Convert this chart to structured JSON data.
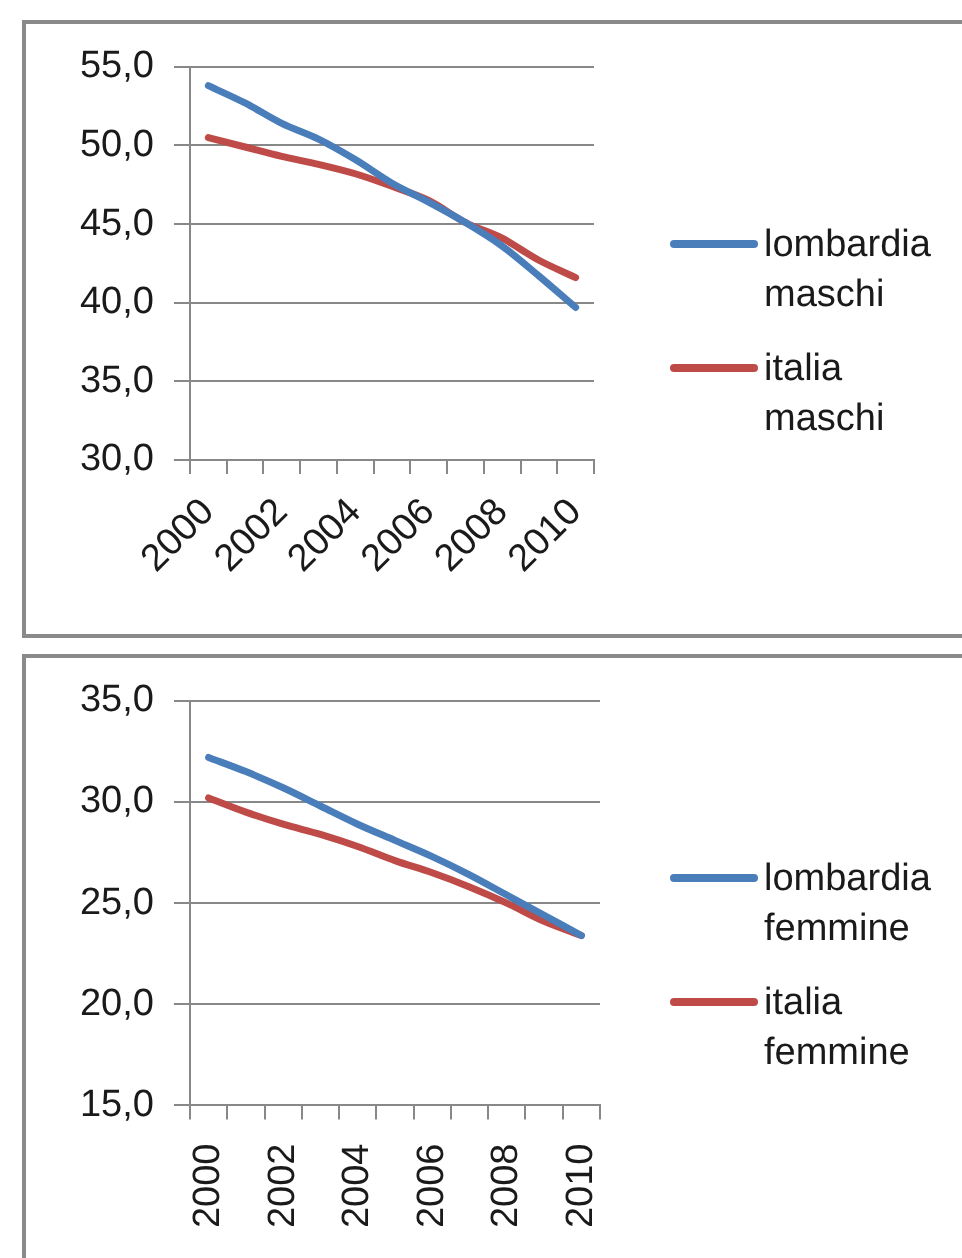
{
  "chart_data": [
    {
      "type": "line",
      "categories": [
        "2000",
        null,
        "2002",
        null,
        "2004",
        null,
        "2006",
        null,
        "2008",
        null,
        "2010"
      ],
      "series": [
        {
          "name": "lombardia maschi",
          "color": "#4a7ebb",
          "values": [
            53.8,
            52.7,
            51.4,
            50.4,
            49.1,
            47.6,
            46.4,
            45.1,
            43.6,
            41.7,
            39.7
          ]
        },
        {
          "name": "italia maschi",
          "color": "#be4b48",
          "values": [
            50.5,
            49.9,
            49.3,
            48.8,
            48.2,
            47.4,
            46.5,
            45.1,
            44.1,
            42.7,
            41.6
          ]
        }
      ],
      "ylim": [
        30,
        55
      ],
      "yticks": [
        {
          "value": 30,
          "label": "30,0"
        },
        {
          "value": 35,
          "label": "35,0"
        },
        {
          "value": 40,
          "label": "40,0"
        },
        {
          "value": 45,
          "label": "45,0"
        },
        {
          "value": 50,
          "label": "50,0"
        },
        {
          "value": 55,
          "label": "55,0"
        }
      ],
      "grid": "y",
      "legend": "right",
      "marker": "none"
    },
    {
      "type": "line",
      "categories": [
        "2000",
        null,
        "2002",
        null,
        "2004",
        null,
        "2006",
        null,
        "2008",
        null,
        "2010"
      ],
      "series": [
        {
          "name": "lombardia femmine",
          "color": "#4a7ebb",
          "values": [
            32.2,
            31.5,
            30.7,
            29.8,
            28.9,
            28.1,
            27.3,
            26.4,
            25.4,
            24.4,
            23.4
          ]
        },
        {
          "name": "italia femmine",
          "color": "#be4b48",
          "values": [
            30.2,
            29.5,
            28.9,
            28.4,
            27.8,
            27.1,
            26.5,
            25.8,
            25.0,
            24.1,
            23.4
          ]
        }
      ],
      "ylim": [
        15,
        35
      ],
      "yticks": [
        {
          "value": 15,
          "label": "15,0"
        },
        {
          "value": 20,
          "label": "20,0"
        },
        {
          "value": 25,
          "label": "25,0"
        },
        {
          "value": 30,
          "label": "30,0"
        },
        {
          "value": 35,
          "label": "35,0"
        }
      ],
      "grid": "y",
      "legend": "right",
      "marker": "none"
    }
  ]
}
